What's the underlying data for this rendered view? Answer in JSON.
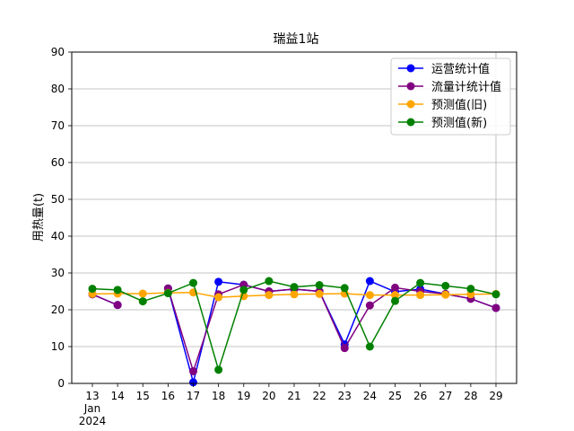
{
  "chart_data": {
    "type": "line",
    "title": "瑞益1站",
    "xlabel": "",
    "ylabel": "用热量(t)",
    "x": [
      "13",
      "14",
      "15",
      "16",
      "17",
      "18",
      "19",
      "20",
      "21",
      "22",
      "23",
      "24",
      "25",
      "26",
      "27",
      "28",
      "29"
    ],
    "x_sublabels": [
      "Jan",
      "2024"
    ],
    "ylim": [
      0,
      90
    ],
    "yticks": [
      0,
      10,
      20,
      30,
      40,
      50,
      60,
      70,
      80,
      90
    ],
    "grid": true,
    "legend_position": "top-right",
    "series": [
      {
        "name": "运营统计值",
        "color": "#0000ff",
        "values": [
          24.2,
          21.3,
          null,
          25.8,
          0.3,
          27.6,
          26.8,
          25.0,
          25.6,
          25.0,
          10.6,
          27.8,
          24.9,
          25.6,
          24.3,
          23.0,
          20.5
        ]
      },
      {
        "name": "流量计统计值",
        "color": "#800080",
        "values": [
          24.2,
          21.3,
          null,
          25.8,
          3.3,
          24.2,
          26.8,
          25.0,
          25.6,
          25.0,
          9.6,
          21.2,
          26.0,
          25.0,
          24.3,
          23.0,
          20.5
        ]
      },
      {
        "name": "预测值(旧)",
        "color": "#ffa500",
        "values": [
          24.3,
          24.4,
          24.4,
          24.6,
          24.7,
          23.4,
          23.7,
          24.0,
          24.2,
          24.3,
          24.4,
          24.0,
          24.0,
          24.0,
          24.1,
          24.2,
          24.3
        ]
      },
      {
        "name": "预测值(新)",
        "color": "#008000",
        "values": [
          25.7,
          25.4,
          22.3,
          24.5,
          27.3,
          3.7,
          25.4,
          27.8,
          26.2,
          26.7,
          25.9,
          10.0,
          22.4,
          27.3,
          26.5,
          25.7,
          24.2
        ]
      }
    ]
  }
}
